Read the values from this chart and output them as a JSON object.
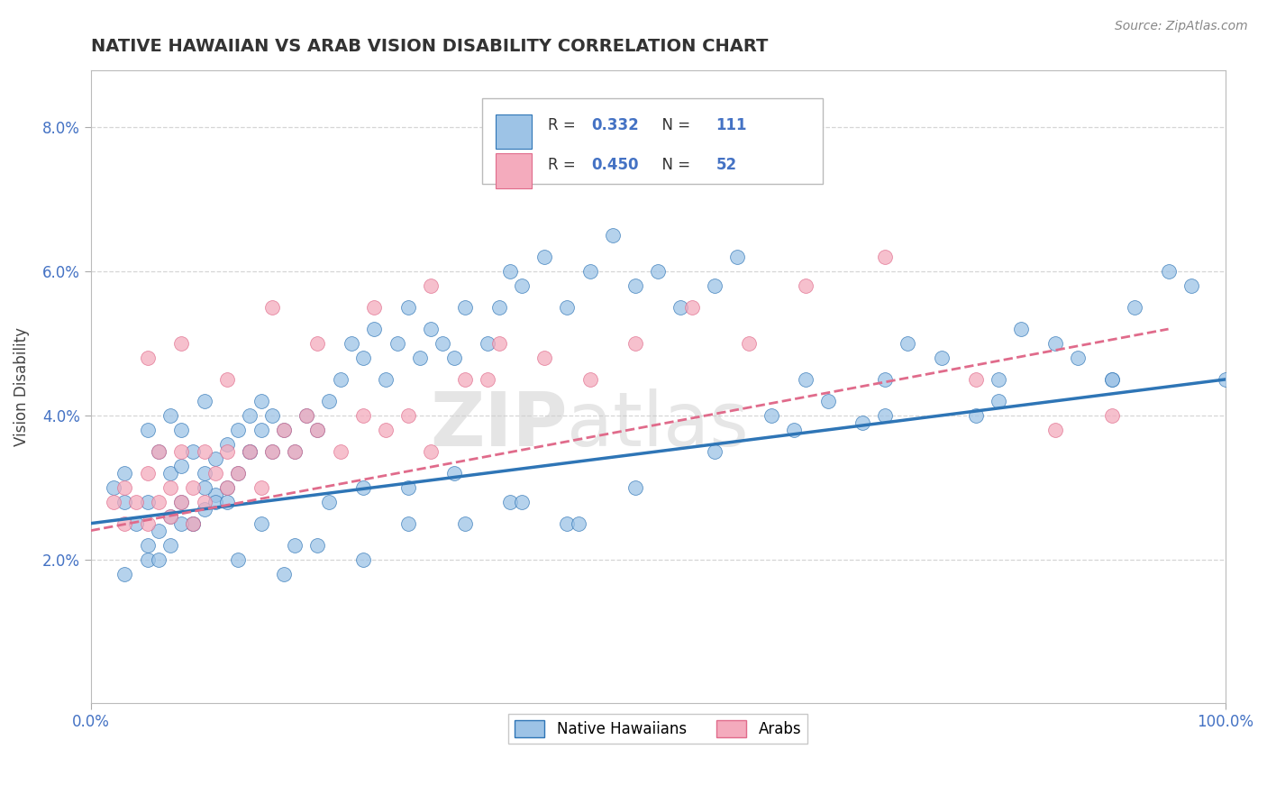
{
  "title": "NATIVE HAWAIIAN VS ARAB VISION DISABILITY CORRELATION CHART",
  "source_text": "Source: ZipAtlas.com",
  "ylabel": "Vision Disability",
  "xlim": [
    0,
    100
  ],
  "ylim": [
    0,
    8.8
  ],
  "color_blue": "#9DC3E6",
  "color_pink": "#F4ABBD",
  "color_blue_line": "#2E75B6",
  "color_pink_line": "#E06B8B",
  "watermark_zip": "ZIP",
  "watermark_atlas": "atlas",
  "blue_x": [
    2,
    3,
    3,
    4,
    5,
    5,
    5,
    6,
    6,
    7,
    7,
    7,
    8,
    8,
    8,
    9,
    9,
    10,
    10,
    10,
    11,
    11,
    12,
    12,
    13,
    13,
    14,
    14,
    15,
    15,
    16,
    16,
    17,
    18,
    19,
    20,
    21,
    22,
    23,
    24,
    25,
    26,
    27,
    28,
    29,
    30,
    31,
    32,
    33,
    35,
    36,
    37,
    38,
    40,
    42,
    44,
    46,
    48,
    50,
    52,
    55,
    57,
    60,
    63,
    65,
    68,
    70,
    72,
    75,
    78,
    80,
    82,
    85,
    87,
    90,
    92,
    95,
    97,
    100,
    3,
    5,
    7,
    9,
    11,
    13,
    15,
    18,
    21,
    24,
    28,
    32,
    37,
    42,
    48,
    55,
    62,
    70,
    80,
    90,
    6,
    8,
    10,
    12,
    14,
    17,
    20,
    24,
    28,
    33,
    38,
    43
  ],
  "blue_y": [
    3.0,
    3.2,
    2.8,
    2.5,
    2.2,
    2.8,
    3.8,
    2.4,
    3.5,
    2.6,
    3.2,
    4.0,
    2.8,
    3.3,
    3.8,
    2.5,
    3.5,
    2.7,
    3.2,
    4.2,
    2.9,
    3.4,
    3.0,
    3.6,
    3.2,
    3.8,
    3.5,
    4.0,
    3.8,
    4.2,
    3.5,
    4.0,
    3.8,
    3.5,
    4.0,
    3.8,
    4.2,
    4.5,
    5.0,
    4.8,
    5.2,
    4.5,
    5.0,
    5.5,
    4.8,
    5.2,
    5.0,
    4.8,
    5.5,
    5.0,
    5.5,
    6.0,
    5.8,
    6.2,
    5.5,
    6.0,
    6.5,
    5.8,
    6.0,
    5.5,
    5.8,
    6.2,
    4.0,
    4.5,
    4.2,
    3.9,
    4.5,
    5.0,
    4.8,
    4.0,
    4.5,
    5.2,
    5.0,
    4.8,
    4.5,
    5.5,
    6.0,
    5.8,
    4.5,
    1.8,
    2.0,
    2.2,
    2.5,
    2.8,
    2.0,
    2.5,
    2.2,
    2.8,
    3.0,
    2.5,
    3.2,
    2.8,
    2.5,
    3.0,
    3.5,
    3.8,
    4.0,
    4.2,
    4.5,
    2.0,
    2.5,
    3.0,
    2.8,
    3.5,
    1.8,
    2.2,
    2.0,
    3.0,
    2.5,
    2.8,
    2.5
  ],
  "pink_x": [
    2,
    3,
    3,
    4,
    5,
    5,
    6,
    6,
    7,
    7,
    8,
    8,
    9,
    9,
    10,
    10,
    11,
    12,
    12,
    13,
    14,
    15,
    16,
    17,
    18,
    19,
    20,
    22,
    24,
    26,
    28,
    30,
    33,
    36,
    40,
    44,
    48,
    53,
    58,
    63,
    70,
    78,
    85,
    90,
    5,
    8,
    12,
    16,
    20,
    25,
    30,
    35
  ],
  "pink_y": [
    2.8,
    2.5,
    3.0,
    2.8,
    2.5,
    3.2,
    2.8,
    3.5,
    2.6,
    3.0,
    2.8,
    3.5,
    2.5,
    3.0,
    2.8,
    3.5,
    3.2,
    3.0,
    3.5,
    3.2,
    3.5,
    3.0,
    3.5,
    3.8,
    3.5,
    4.0,
    3.8,
    3.5,
    4.0,
    3.8,
    4.0,
    3.5,
    4.5,
    5.0,
    4.8,
    4.5,
    5.0,
    5.5,
    5.0,
    5.8,
    6.2,
    4.5,
    3.8,
    4.0,
    4.8,
    5.0,
    4.5,
    5.5,
    5.0,
    5.5,
    5.8,
    4.5
  ],
  "blue_trend_x": [
    0,
    100
  ],
  "blue_trend_y": [
    2.5,
    4.5
  ],
  "pink_trend_x": [
    0,
    95
  ],
  "pink_trend_y": [
    2.4,
    5.2
  ]
}
